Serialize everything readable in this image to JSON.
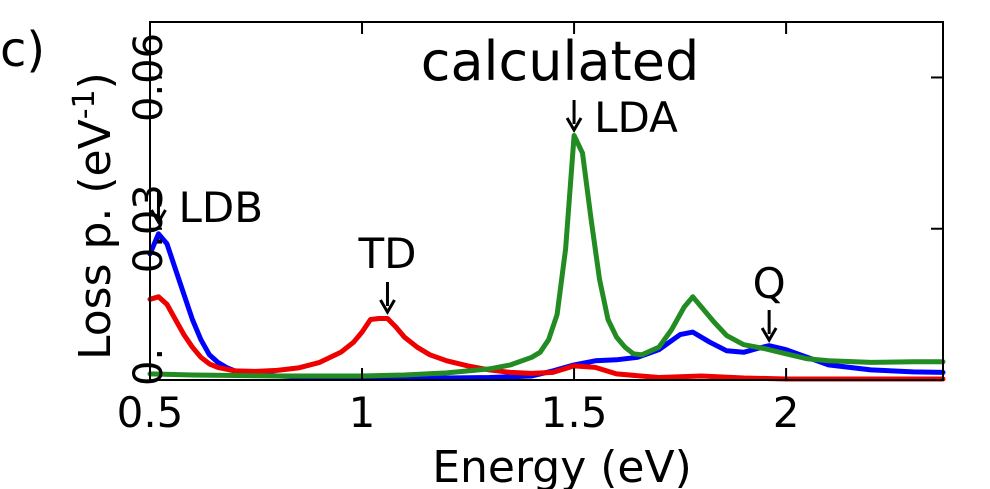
{
  "panel_label": "c)",
  "chart_data": {
    "type": "line",
    "title": "calculated",
    "xlabel": "Energy (eV)",
    "ylabel": "Loss p. (eV",
    "ylabel_sup": "-1",
    "ylabel_close": ")",
    "xlim": [
      0.5,
      2.37
    ],
    "ylim": [
      0,
      0.071
    ],
    "xticks": [
      0.5,
      1,
      1.5,
      2
    ],
    "xtick_labels": [
      "0.5",
      "1",
      "1.5",
      "2"
    ],
    "yticks": [
      0,
      0.03,
      0.06
    ],
    "ytick_labels": [
      "0.",
      "0.03",
      "0.06"
    ],
    "grid": false,
    "colors": {
      "blue": "#0000ff",
      "red": "#ee0000",
      "green": "#228b22"
    },
    "series": [
      {
        "color": "#0000ff",
        "x": [
          0.5,
          0.52,
          0.54,
          0.56,
          0.58,
          0.6,
          0.62,
          0.64,
          0.66,
          0.68,
          0.7,
          0.75,
          0.8,
          0.9,
          1.0,
          1.1,
          1.2,
          1.3,
          1.4,
          1.45,
          1.5,
          1.55,
          1.6,
          1.65,
          1.7,
          1.75,
          1.78,
          1.82,
          1.86,
          1.9,
          1.93,
          1.96,
          2.0,
          2.05,
          2.1,
          2.2,
          2.3,
          2.37
        ],
        "y": [
          0.025,
          0.029,
          0.027,
          0.022,
          0.017,
          0.012,
          0.008,
          0.005,
          0.0035,
          0.0025,
          0.0018,
          0.0012,
          0.0008,
          0.0005,
          0.0003,
          0.0003,
          0.0004,
          0.0005,
          0.0008,
          0.0018,
          0.003,
          0.0038,
          0.004,
          0.0045,
          0.006,
          0.009,
          0.0095,
          0.0075,
          0.0058,
          0.0055,
          0.0062,
          0.0068,
          0.006,
          0.0045,
          0.003,
          0.002,
          0.0016,
          0.0015
        ]
      },
      {
        "color": "#ee0000",
        "x": [
          0.5,
          0.52,
          0.54,
          0.56,
          0.58,
          0.6,
          0.62,
          0.64,
          0.66,
          0.7,
          0.75,
          0.8,
          0.85,
          0.9,
          0.95,
          0.98,
          1.0,
          1.02,
          1.04,
          1.06,
          1.08,
          1.1,
          1.13,
          1.16,
          1.2,
          1.25,
          1.3,
          1.35,
          1.4,
          1.45,
          1.5,
          1.55,
          1.6,
          1.7,
          1.8,
          1.9,
          2.0,
          2.2,
          2.37
        ],
        "y": [
          0.016,
          0.0165,
          0.015,
          0.012,
          0.009,
          0.0065,
          0.0045,
          0.0032,
          0.0025,
          0.0018,
          0.0017,
          0.0019,
          0.0024,
          0.0035,
          0.0055,
          0.0075,
          0.0095,
          0.012,
          0.0122,
          0.0122,
          0.0105,
          0.0085,
          0.0065,
          0.005,
          0.0038,
          0.0028,
          0.002,
          0.0015,
          0.0013,
          0.0015,
          0.0028,
          0.0025,
          0.0012,
          0.0005,
          0.0008,
          0.0004,
          0.0002,
          0.0002,
          0.0002
        ]
      },
      {
        "color": "#228b22",
        "x": [
          0.5,
          0.6,
          0.7,
          0.8,
          0.9,
          1.0,
          1.1,
          1.2,
          1.3,
          1.35,
          1.4,
          1.42,
          1.44,
          1.46,
          1.48,
          1.5,
          1.52,
          1.54,
          1.56,
          1.58,
          1.6,
          1.62,
          1.64,
          1.66,
          1.7,
          1.73,
          1.76,
          1.78,
          1.8,
          1.83,
          1.86,
          1.9,
          1.95,
          2.0,
          2.05,
          2.1,
          2.2,
          2.3,
          2.37
        ],
        "y": [
          0.0012,
          0.001,
          0.0009,
          0.0008,
          0.0008,
          0.0008,
          0.001,
          0.0014,
          0.0022,
          0.003,
          0.0045,
          0.0055,
          0.008,
          0.013,
          0.026,
          0.0485,
          0.045,
          0.032,
          0.02,
          0.012,
          0.0085,
          0.0065,
          0.0052,
          0.005,
          0.0065,
          0.01,
          0.0145,
          0.0165,
          0.0145,
          0.0115,
          0.0088,
          0.007,
          0.0062,
          0.0052,
          0.0042,
          0.0038,
          0.0035,
          0.0036,
          0.0036
        ]
      }
    ],
    "annotations": [
      {
        "text": "LDB",
        "x": 0.52,
        "y": 0.029
      },
      {
        "text": "TD",
        "x": 1.06,
        "y": 0.0125
      },
      {
        "text": "LDA",
        "x": 1.5,
        "y": 0.0485
      },
      {
        "text": "Q",
        "x": 1.96,
        "y": 0.0068
      }
    ]
  }
}
